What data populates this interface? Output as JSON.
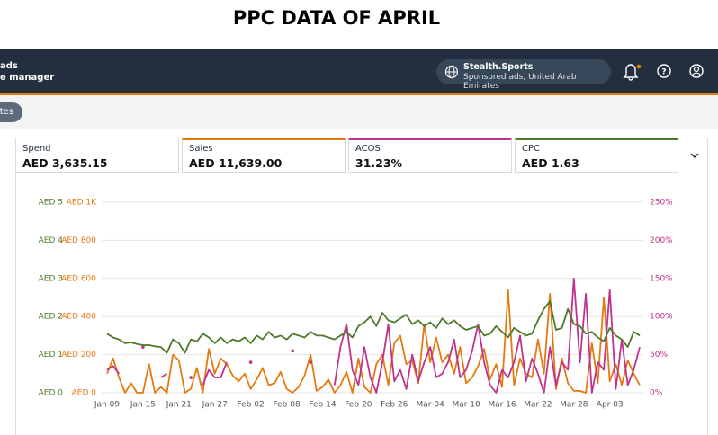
{
  "page_title": "PPC DATA OF APRIL",
  "header": {
    "brand_line1": "ads",
    "brand_line2": "e manager",
    "account": "Stealth.Sports",
    "account_sub": "Sponsored ads, United Arab Emirates"
  },
  "toolbar": {
    "button": "tes"
  },
  "metrics": [
    {
      "label": "Spend",
      "value": "AED 3,635.15"
    },
    {
      "value": "AED 11,639.00"
    },
    {
      "value": "31.23%"
    },
    {
      "value": "AED 1.63"
    }
  ],
  "chart_data": {
    "type": "line",
    "categories": [
      "Jan 09",
      null,
      null,
      null,
      null,
      null,
      "Jan 15",
      null,
      null,
      null,
      null,
      null,
      "Jan 21",
      null,
      null,
      null,
      null,
      null,
      "Jan 27",
      null,
      null,
      null,
      null,
      null,
      "Feb 02",
      null,
      null,
      null,
      null,
      null,
      "Feb 08",
      null,
      null,
      null,
      null,
      null,
      "Feb 14",
      null,
      null,
      null,
      null,
      null,
      "Feb 20",
      null,
      null,
      null,
      null,
      null,
      "Feb 26",
      null,
      null,
      null,
      null,
      null,
      "Mar 04",
      null,
      null,
      null,
      null,
      null,
      "Mar 10",
      null,
      null,
      null,
      null,
      null,
      "Mar 16",
      null,
      null,
      null,
      null,
      null,
      "Mar 22",
      null,
      null,
      null,
      null,
      null,
      "Mar 28",
      null,
      null,
      null,
      null,
      null,
      "Apr 03",
      null,
      null,
      null,
      null,
      null
    ],
    "ylim": [
      0,
      5
    ],
    "yticks": [
      {
        "value": 0,
        "label": "AED 0"
      },
      {
        "value": 1,
        "label": "AED 1"
      },
      {
        "value": 2,
        "label": "AED 2"
      },
      {
        "value": 3,
        "label": "AED 3"
      },
      {
        "value": 4,
        "label": "AED 4"
      },
      {
        "value": 5,
        "label": "AED 5"
      }
    ],
    "y3lim": [
      0,
      1000
    ],
    "y3ticks": [
      {
        "value": 0,
        "label": "AED 0"
      },
      {
        "value": 200,
        "label": "AED 200"
      },
      {
        "value": 400,
        "label": "AED 400"
      },
      {
        "value": 600,
        "label": "AED 600"
      },
      {
        "value": 800,
        "label": "AED 800"
      },
      {
        "value": 1000,
        "label": "AED 1K"
      }
    ],
    "y2lim": [
      0,
      250
    ],
    "y2ticks": [
      {
        "value": 0,
        "label": "0%"
      },
      {
        "value": 50,
        "label": "50%"
      },
      {
        "value": 100,
        "label": "100%"
      },
      {
        "value": 150,
        "label": "150%"
      },
      {
        "value": 200,
        "label": "200%"
      },
      {
        "value": 250,
        "label": "250%"
      }
    ],
    "grid": true,
    "series": [
      {
        "name": "Sales",
        "color": "#e47911",
        "axis": "y3",
        "values": [
          100,
          180,
          80,
          0,
          50,
          0,
          0,
          150,
          0,
          30,
          0,
          200,
          170,
          0,
          20,
          130,
          0,
          230,
          100,
          180,
          150,
          90,
          60,
          100,
          20,
          70,
          130,
          40,
          50,
          110,
          20,
          0,
          30,
          90,
          200,
          10,
          30,
          70,
          0,
          40,
          110,
          0,
          180,
          30,
          0,
          150,
          200,
          40,
          260,
          300,
          150,
          170,
          50,
          360,
          160,
          290,
          160,
          200,
          100,
          240,
          50,
          80,
          140,
          230,
          70,
          150,
          30,
          540,
          40,
          180,
          100,
          80,
          280,
          100,
          520,
          20,
          180,
          50,
          10,
          10,
          0,
          260,
          50,
          500,
          60,
          150,
          40,
          170,
          100,
          40
        ]
      },
      {
        "name": "ACOS",
        "color": "#c0328c",
        "axis": "y2",
        "values": [
          30,
          35,
          25,
          null,
          null,
          null,
          60,
          null,
          null,
          20,
          25,
          null,
          null,
          null,
          20,
          null,
          10,
          30,
          20,
          20,
          40,
          null,
          null,
          null,
          40,
          null,
          null,
          null,
          null,
          null,
          null,
          55,
          null,
          null,
          40,
          null,
          null,
          null,
          10,
          60,
          90,
          30,
          10,
          60,
          20,
          0,
          40,
          90,
          15,
          30,
          5,
          50,
          15,
          40,
          60,
          20,
          25,
          40,
          70,
          20,
          30,
          55,
          90,
          40,
          10,
          0,
          30,
          20,
          40,
          75,
          15,
          45,
          25,
          0,
          60,
          10,
          40,
          30,
          150,
          40,
          130,
          0,
          40,
          30,
          135,
          5,
          70,
          10,
          30,
          60
        ]
      },
      {
        "name": "CPC",
        "color": "#4d7a28",
        "axis": "y",
        "values": [
          1.55,
          1.45,
          1.4,
          1.3,
          1.32,
          1.28,
          1.25,
          1.25,
          1.22,
          1.2,
          1.05,
          1.4,
          1.3,
          1.05,
          1.4,
          1.35,
          1.55,
          1.45,
          1.3,
          1.45,
          1.3,
          1.4,
          1.35,
          1.45,
          1.3,
          1.5,
          1.4,
          1.6,
          1.45,
          1.5,
          1.4,
          1.55,
          1.5,
          1.45,
          1.6,
          1.5,
          1.5,
          1.45,
          1.4,
          1.5,
          1.6,
          1.45,
          1.75,
          1.85,
          2.0,
          1.75,
          2.1,
          1.9,
          1.85,
          1.95,
          2.05,
          1.8,
          1.9,
          1.75,
          1.85,
          1.7,
          1.95,
          1.8,
          1.9,
          1.75,
          1.65,
          1.7,
          1.75,
          1.5,
          1.55,
          1.75,
          1.6,
          1.45,
          1.7,
          1.6,
          1.5,
          1.55,
          1.9,
          2.2,
          2.4,
          1.65,
          1.7,
          2.2,
          1.8,
          1.75,
          1.55,
          1.6,
          1.45,
          1.35,
          1.7,
          1.5,
          1.4,
          1.2,
          1.6,
          1.5
        ]
      }
    ]
  }
}
